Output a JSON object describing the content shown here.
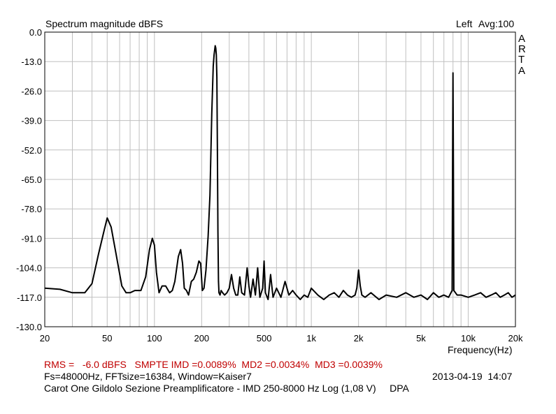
{
  "header": {
    "title": "Spectrum magnitude dBFS",
    "channel": "Left",
    "average": "Avg:100",
    "brand_letters": [
      "A",
      "R",
      "T",
      "A"
    ]
  },
  "footer": {
    "rms_line": "RMS =   -6.0 dBFS   SMPTE IMD =0.0089%  MD2 =0.0034%  MD3 =0.0039%",
    "fs_line": "Fs=48000Hz, FFTsize=16384, Window=Kaiser7",
    "datetime": "2013-04-19  14:07",
    "description": "Carot One Gildolo Sezione Preamplificatore - IMD 250-8000 Hz Log (1,08 V)     DPA"
  },
  "colors": {
    "trace": "#000000",
    "grid": "#c0c0c0",
    "footer_red": "#c00000"
  },
  "chart_data": {
    "type": "line",
    "title": "Spectrum magnitude dBFS",
    "xlabel": "Frequency(Hz)",
    "ylabel": "",
    "xscale": "log",
    "xlim": [
      20,
      20000
    ],
    "ylim": [
      -130,
      0
    ],
    "grid": true,
    "y_ticks": [
      "0.0",
      "-13.0",
      "-26.0",
      "-39.0",
      "-52.0",
      "-65.0",
      "-78.0",
      "-91.0",
      "-104.0",
      "-117.0",
      "-130.0"
    ],
    "x_ticks": [
      {
        "value": 20,
        "label": "20"
      },
      {
        "value": 50,
        "label": "50"
      },
      {
        "value": 100,
        "label": "100"
      },
      {
        "value": 200,
        "label": "200"
      },
      {
        "value": 500,
        "label": "500"
      },
      {
        "value": 1000,
        "label": "1k"
      },
      {
        "value": 2000,
        "label": "2k"
      },
      {
        "value": 5000,
        "label": "5k"
      },
      {
        "value": 10000,
        "label": "10k"
      },
      {
        "value": 20000,
        "label": "20k"
      }
    ],
    "series": [
      {
        "x": [
          20,
          25,
          30,
          36,
          40,
          44,
          48,
          50,
          53,
          57,
          62,
          66,
          70,
          75,
          82,
          88,
          93,
          97,
          100,
          103,
          107,
          112,
          118,
          125,
          130,
          135,
          142,
          147,
          151,
          155,
          160,
          165,
          172,
          178,
          185,
          192,
          197,
          202,
          207,
          213,
          220,
          226,
          232,
          237,
          240,
          242,
          244,
          246,
          248,
          250,
          252,
          254,
          256,
          258,
          262,
          266,
          272,
          280,
          290,
          300,
          310,
          320,
          330,
          340,
          350,
          360,
          375,
          390,
          400,
          410,
          425,
          440,
          455,
          470,
          490,
          500,
          510,
          530,
          550,
          570,
          600,
          640,
          680,
          720,
          760,
          800,
          850,
          900,
          950,
          1000,
          1100,
          1200,
          1300,
          1400,
          1500,
          1600,
          1700,
          1800,
          1900,
          1950,
          2000,
          2050,
          2100,
          2200,
          2400,
          2700,
          3000,
          3500,
          4000,
          4500,
          5000,
          5500,
          6000,
          6500,
          7000,
          7500,
          7900,
          7950,
          8000,
          8050,
          8100,
          8500,
          9000,
          10000,
          11000,
          12000,
          13000,
          14000,
          15000,
          16000,
          17000,
          18000,
          19000,
          20000
        ],
        "y": [
          -113,
          -113.5,
          -115,
          -115,
          -111,
          -98,
          -87,
          -82,
          -86,
          -98,
          -112,
          -115,
          -115,
          -114,
          -114,
          -108,
          -96,
          -91,
          -94,
          -106,
          -115,
          -112,
          -112,
          -115,
          -114,
          -110,
          -99,
          -96,
          -102,
          -113,
          -114,
          -116,
          -110,
          -109,
          -106,
          -101,
          -102,
          -114,
          -113,
          -105,
          -90,
          -72,
          -36,
          -15,
          -10,
          -8,
          -6,
          -7,
          -10,
          -20,
          -50,
          -88,
          -110,
          -115,
          -116,
          -114,
          -115,
          -116,
          -115,
          -113,
          -107,
          -113,
          -116,
          -116,
          -108,
          -115,
          -116,
          -104,
          -112,
          -117,
          -109,
          -116,
          -104,
          -117,
          -113,
          -101,
          -115,
          -118,
          -107,
          -117,
          -113,
          -117,
          -110,
          -116,
          -114,
          -116,
          -118,
          -116,
          -117,
          -113,
          -116,
          -118,
          -116,
          -115,
          -117,
          -114,
          -116,
          -117,
          -116,
          -113,
          -105,
          -112,
          -116,
          -117,
          -115,
          -118,
          -116,
          -117,
          -115,
          -117,
          -116,
          -118,
          -115,
          -117,
          -116,
          -117,
          -114,
          -60,
          -18,
          -60,
          -114,
          -116,
          -116,
          -117,
          -116,
          -115,
          -117,
          -116,
          -115,
          -117,
          -116,
          -115,
          -117,
          -116
        ]
      }
    ]
  }
}
